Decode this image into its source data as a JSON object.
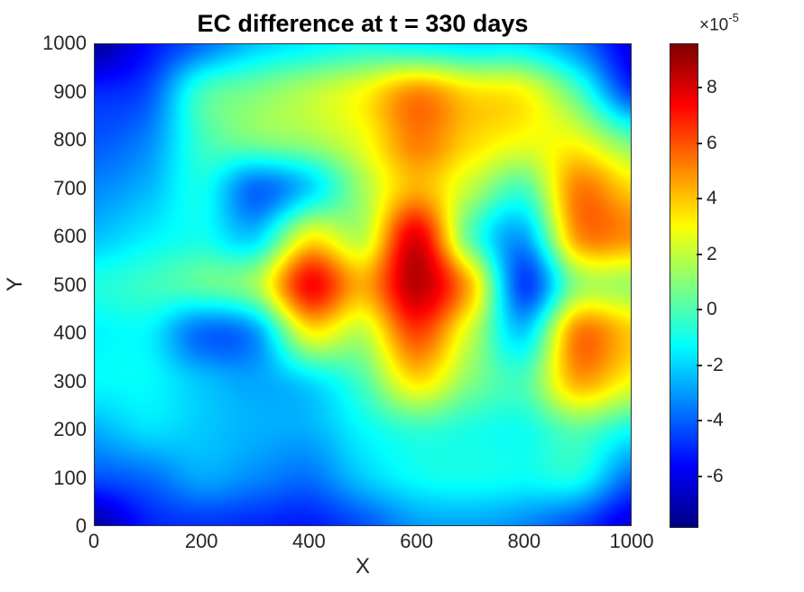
{
  "figure": {
    "background": "#ffffff"
  },
  "chart_data": {
    "type": "heatmap",
    "title": "EC difference at t = 330 days",
    "xlabel": "X",
    "ylabel": "Y",
    "x_range": [
      0,
      1000
    ],
    "y_range": [
      0,
      1000
    ],
    "x_ticks": [
      0,
      200,
      400,
      600,
      800,
      1000
    ],
    "y_ticks": [
      0,
      100,
      200,
      300,
      400,
      500,
      600,
      700,
      800,
      900,
      1000
    ],
    "grid_x": [
      0,
      100,
      200,
      300,
      400,
      500,
      600,
      700,
      800,
      900,
      1000
    ],
    "grid_y_top_to_bottom": [
      1000,
      900,
      800,
      700,
      600,
      500,
      400,
      300,
      200,
      100,
      0
    ],
    "values_unit": "1e-5",
    "values": [
      [
        -7.4,
        -5.5,
        -3.8,
        -2.2,
        -1.5,
        -1.0,
        -1.4,
        -1.7,
        -1.7,
        -3.4,
        -6.0
      ],
      [
        -5.0,
        -4.3,
        -0.3,
        0.8,
        1.8,
        3.0,
        5.0,
        3.6,
        3.0,
        0.0,
        -4.6
      ],
      [
        -4.2,
        -3.3,
        -0.3,
        0.8,
        1.4,
        2.8,
        5.3,
        3.8,
        2.9,
        2.8,
        0.5
      ],
      [
        -3.3,
        -2.5,
        -1.0,
        -3.8,
        -2.0,
        1.5,
        4.4,
        2.0,
        0.0,
        5.2,
        3.8
      ],
      [
        -2.3,
        -1.5,
        -1.0,
        -2.0,
        3.0,
        2.0,
        7.8,
        0.3,
        -2.8,
        4.8,
        5.0
      ],
      [
        -0.8,
        -0.3,
        0.3,
        1.5,
        7.3,
        4.5,
        8.6,
        4.2,
        -4.5,
        1.2,
        1.5
      ],
      [
        -1.4,
        -1.4,
        -3.8,
        -3.0,
        3.0,
        2.0,
        6.3,
        2.2,
        -2.0,
        5.2,
        4.0
      ],
      [
        -1.3,
        -1.3,
        -2.3,
        -2.8,
        -1.8,
        0.0,
        3.5,
        1.0,
        0.0,
        4.5,
        3.0
      ],
      [
        -2.6,
        -1.8,
        -2.2,
        -2.6,
        -2.6,
        -1.3,
        -0.4,
        -0.8,
        -1.0,
        0.3,
        -1.0
      ],
      [
        -4.3,
        -3.8,
        -2.8,
        -3.3,
        -3.7,
        -2.2,
        -1.2,
        -1.0,
        -1.2,
        -1.0,
        -3.8
      ],
      [
        -7.2,
        -5.2,
        -4.8,
        -5.0,
        -5.2,
        -4.3,
        -3.0,
        -2.8,
        -3.3,
        -4.5,
        -6.2
      ]
    ],
    "clim": [
      -7.8,
      9.6
    ],
    "colormap": "jet",
    "legend_position": "right-colorbar",
    "grid": "off",
    "colorbar": {
      "ticks": [
        8,
        6,
        4,
        2,
        0,
        -2,
        -4,
        -6
      ],
      "exponent_base": "×10",
      "exponent_power": "-5"
    }
  },
  "colors": {
    "title": "#000000",
    "tick_label": "#262626",
    "axis_box": "#323232",
    "jet_stops": [
      [
        0.0,
        [
          0,
          0,
          131
        ]
      ],
      [
        0.125,
        [
          0,
          0,
          255
        ]
      ],
      [
        0.375,
        [
          0,
          255,
          255
        ]
      ],
      [
        0.625,
        [
          255,
          255,
          0
        ]
      ],
      [
        0.875,
        [
          255,
          0,
          0
        ]
      ],
      [
        1.0,
        [
          128,
          0,
          0
        ]
      ]
    ]
  }
}
